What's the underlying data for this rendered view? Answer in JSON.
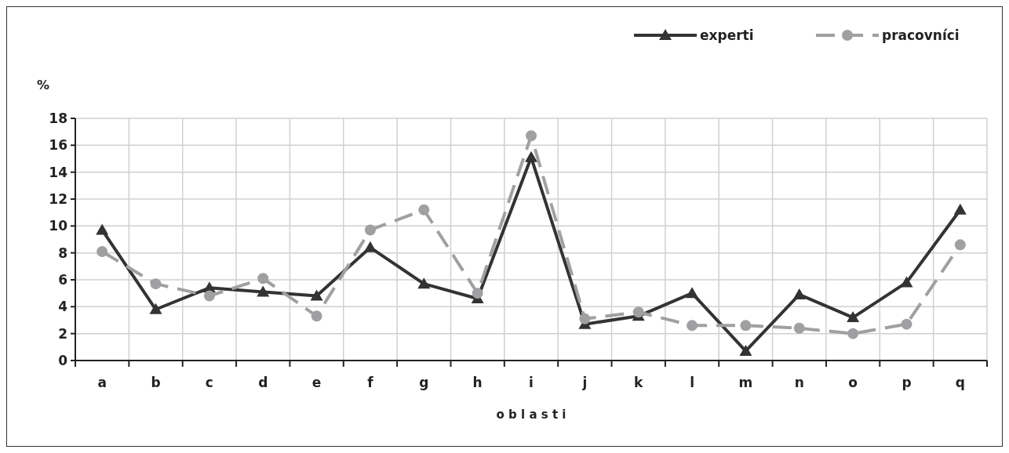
{
  "chart_data": {
    "type": "line",
    "ylabel": "%",
    "xlabel": "o b l a s t i",
    "categories": [
      "a",
      "b",
      "c",
      "d",
      "e",
      "f",
      "g",
      "h",
      "i",
      "j",
      "k",
      "l",
      "m",
      "n",
      "o",
      "p",
      "q"
    ],
    "series": [
      {
        "name": "experti",
        "color": "#333333",
        "marker": "triangle",
        "line_style": "solid",
        "values": [
          9.7,
          3.8,
          5.4,
          5.1,
          4.8,
          8.4,
          5.7,
          4.6,
          15.1,
          2.7,
          3.3,
          5.0,
          0.7,
          4.9,
          3.2,
          5.8,
          11.2
        ]
      },
      {
        "name": "pracovníci",
        "color": "#a0a0a2",
        "marker": "circle",
        "line_style": "dashed",
        "values": [
          8.1,
          5.7,
          4.8,
          6.1,
          3.3,
          9.7,
          11.2,
          5.0,
          16.7,
          3.1,
          3.6,
          2.6,
          2.6,
          2.4,
          2.0,
          2.7,
          8.6
        ]
      }
    ],
    "ylim": [
      0,
      18
    ],
    "yticks": [
      0,
      2,
      4,
      6,
      8,
      10,
      12,
      14,
      16,
      18
    ],
    "grid": true,
    "legend": "top right"
  }
}
